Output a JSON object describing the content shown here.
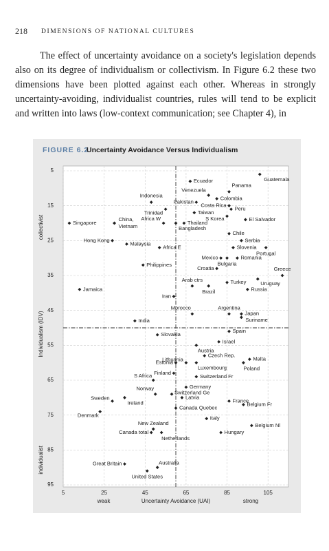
{
  "header": {
    "page_number": "218",
    "running_title": "DIMENSIONS OF NATIONAL CULTURES"
  },
  "body": {
    "paragraph": "The effect of uncertainty avoidance on a society's legislation depends also on its degree of individualism or collectivism. In Figure 6.2 these two dimensions have been plotted against each other. Whereas in strongly uncertainty-avoiding, individualist countries, rules will tend to be explicit and written into laws (low-context communication; see Chapter 4), in"
  },
  "chart_data": {
    "type": "scatter",
    "figure_label": "FIGURE 6.2",
    "title": "Uncertainty Avoidance Versus Individualism",
    "xlabel": "Uncertainty Avoidance (UAI)",
    "ylabel": "Individualism (IDV)",
    "x_end_labels": [
      "weak",
      "strong"
    ],
    "y_end_labels": [
      "collectivist",
      "individualist"
    ],
    "xlim": [
      5,
      115
    ],
    "ylim": [
      5,
      95
    ],
    "y_reversed": true,
    "xticks": [
      5,
      25,
      45,
      65,
      85,
      105
    ],
    "yticks": [
      5,
      15,
      25,
      35,
      45,
      55,
      65,
      75,
      85,
      95
    ],
    "grid": true,
    "reference_lines": {
      "x": 60,
      "y": 50
    },
    "color": "#222222",
    "labels": [
      "Guatemala",
      "Ecuador",
      "Panama",
      "Venezuela",
      "Colombia",
      "Pakistan",
      "Indonesia",
      "Costa Rica",
      "Peru",
      "Trinidad",
      "Taiwan",
      "Singapore",
      "China,",
      "Vietnam",
      "Africa W",
      "Bangladesh",
      "Thailand",
      "S Korea",
      "El Salvador",
      "Chile",
      "Serbia",
      "Hong Kong",
      "Malaysia",
      "Slovenia",
      "Africa E",
      "Portugal",
      "Mexico",
      "Romania",
      "Bulgaria",
      "Philippines",
      "Croatia",
      "Greece",
      "Arab ctrs",
      "Turkey",
      "Uruguay",
      "Brazil",
      "Russia",
      "Jamaica",
      "Iran",
      "Morocco",
      "Argentina",
      "Japan",
      "Suriname",
      "India",
      "Spain",
      "Slovakia",
      "Israel",
      "Austria",
      "Czech Rep.",
      "Lithuania",
      "Estonia",
      "Malta",
      "Luxembourg",
      "Poland",
      "Finland",
      "Switzerland Fr",
      "S Africa",
      "Norway",
      "Germany",
      "Switzerland Ge",
      "Sweden",
      "Ireland",
      "Latvia",
      "Canada Quebec",
      "France",
      "Belgium Fr",
      "Denmark",
      "Italy",
      "Belgium Nl",
      "New Zealand",
      "Canada total",
      "Netherlands",
      "Hungary",
      "Great Britain",
      "Australia",
      "United States"
    ],
    "x": [
      101,
      67,
      86,
      76,
      80,
      70,
      48,
      86,
      87,
      55,
      69,
      8,
      30,
      30,
      54,
      60,
      64,
      85,
      94,
      86,
      92,
      29,
      36,
      88,
      52,
      104,
      82,
      90,
      85,
      44,
      80,
      112,
      68,
      85,
      100,
      76,
      95,
      13,
      59,
      68,
      86,
      92,
      92,
      40,
      86,
      51,
      81,
      70,
      74,
      65,
      60,
      96,
      70,
      93,
      59,
      70,
      49,
      50,
      65,
      58,
      29,
      35,
      63,
      60,
      86,
      93,
      23,
      75,
      97,
      49,
      48,
      53,
      82,
      35,
      51,
      46
    ],
    "values": [
      6,
      8,
      11,
      12,
      13,
      14,
      14,
      15,
      16,
      16,
      17,
      20,
      20,
      20,
      20,
      20,
      20,
      18,
      19,
      23,
      25,
      25,
      26,
      27,
      27,
      27,
      30,
      30,
      30,
      32,
      33,
      35,
      38,
      37,
      36,
      38,
      39,
      39,
      41,
      46,
      46,
      46,
      47,
      48,
      51,
      52,
      54,
      55,
      58,
      60,
      60,
      59,
      60,
      60,
      63,
      64,
      65,
      69,
      67,
      69,
      71,
      70,
      70,
      73,
      71,
      72,
      74,
      76,
      78,
      79,
      80,
      80,
      80,
      89,
      90,
      91
    ]
  }
}
